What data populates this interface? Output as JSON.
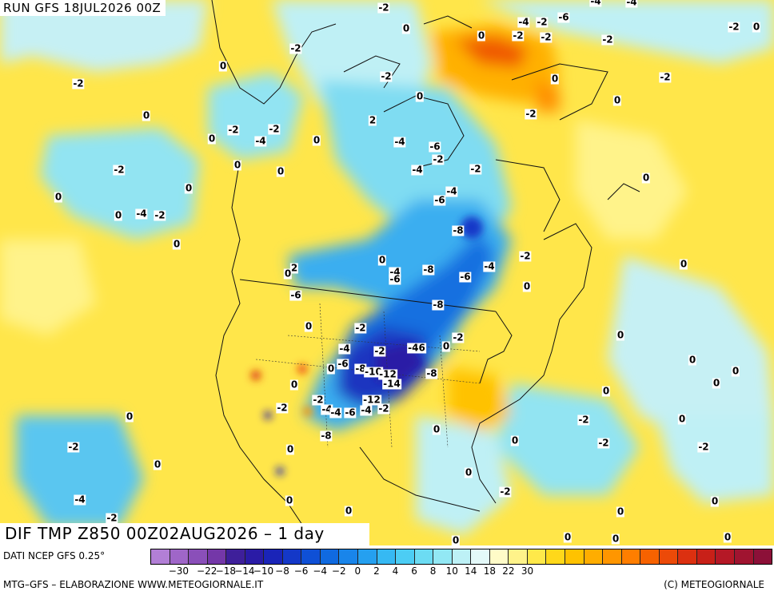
{
  "header": {
    "run_label": "RUN GFS 18JUL2026 00Z"
  },
  "title": "DIF TMP Z850 00Z02AUG2026 – 1 day",
  "footer": {
    "source": "DATI NCEP GFS 0.25°",
    "credit_left": "MTG–GFS – ELABORAZIONE WWW.METEOGIORNALE.IT",
    "credit_right": "(C) METEOGIORNALE"
  },
  "colorbar": {
    "colors": [
      "#b27fd6",
      "#9f66c8",
      "#8a4fb9",
      "#7437a8",
      "#3e1f9a",
      "#2a1ba6",
      "#1a24b8",
      "#1438c8",
      "#0f50d6",
      "#106ae0",
      "#1985ea",
      "#25a0f0",
      "#36b9f3",
      "#4ccdf4",
      "#6cdcf3",
      "#92e8f4",
      "#bdf1f6",
      "#e4f9f9",
      "#fffbc8",
      "#fff38a",
      "#ffe94a",
      "#ffd81a",
      "#ffc200",
      "#ffad00",
      "#ff9600",
      "#ff7e00",
      "#f76200",
      "#ec4a08",
      "#dc3010",
      "#c82018",
      "#b51826",
      "#a01430",
      "#8c1038"
    ],
    "ticks": [
      "−30",
      "−22",
      "−18",
      "−14",
      "−10",
      "−8",
      "−6",
      "−4",
      "−2",
      "0",
      "2",
      "4",
      "6",
      "8",
      "10",
      "14",
      "18",
      "22",
      "30"
    ],
    "tick_indices": [
      1,
      3,
      4,
      5,
      6,
      7,
      8,
      9,
      10,
      11,
      12,
      13,
      14,
      15,
      16,
      17,
      18,
      19,
      20
    ]
  },
  "contour_labels": [
    "-2",
    "0",
    "-4",
    "-2",
    "-6",
    "-4",
    "-4",
    "-2",
    "0",
    "-2",
    "0",
    "-2",
    "-2",
    "-2",
    "-2",
    "0",
    "-2",
    "0",
    "0",
    "-2",
    "0",
    "2",
    "0",
    "-2",
    "-4",
    "-2",
    "0",
    "-4",
    "-6",
    "-4",
    "-2",
    "-2",
    "-2",
    "0",
    "0",
    "-2",
    "0",
    "0",
    "-4",
    "-2",
    "-6",
    "-4",
    "0",
    "0",
    "0",
    "-8",
    "2",
    "-4",
    "-2",
    "0",
    "0",
    "0",
    "-4",
    "-8",
    "-6",
    "-6",
    "-6",
    "0",
    "-8",
    "-2",
    "0",
    "-2",
    "0",
    "-4",
    "-46",
    "-2",
    "0",
    "0",
    "-6",
    "-8",
    "-10",
    "-12",
    "-8",
    "0",
    "0",
    "-2",
    "-4",
    "-14",
    "0",
    "0",
    "-2",
    "-4",
    "-6",
    "-4",
    "-12",
    "-2",
    "0",
    "-2",
    "0",
    "-8",
    "0",
    "-2",
    "-2",
    "0",
    "-2",
    "0",
    "0",
    "-2",
    "-4",
    "0",
    "-2",
    "0",
    "0",
    "0",
    "0",
    "0",
    "0",
    "0",
    "0",
    "0",
    "0"
  ]
}
